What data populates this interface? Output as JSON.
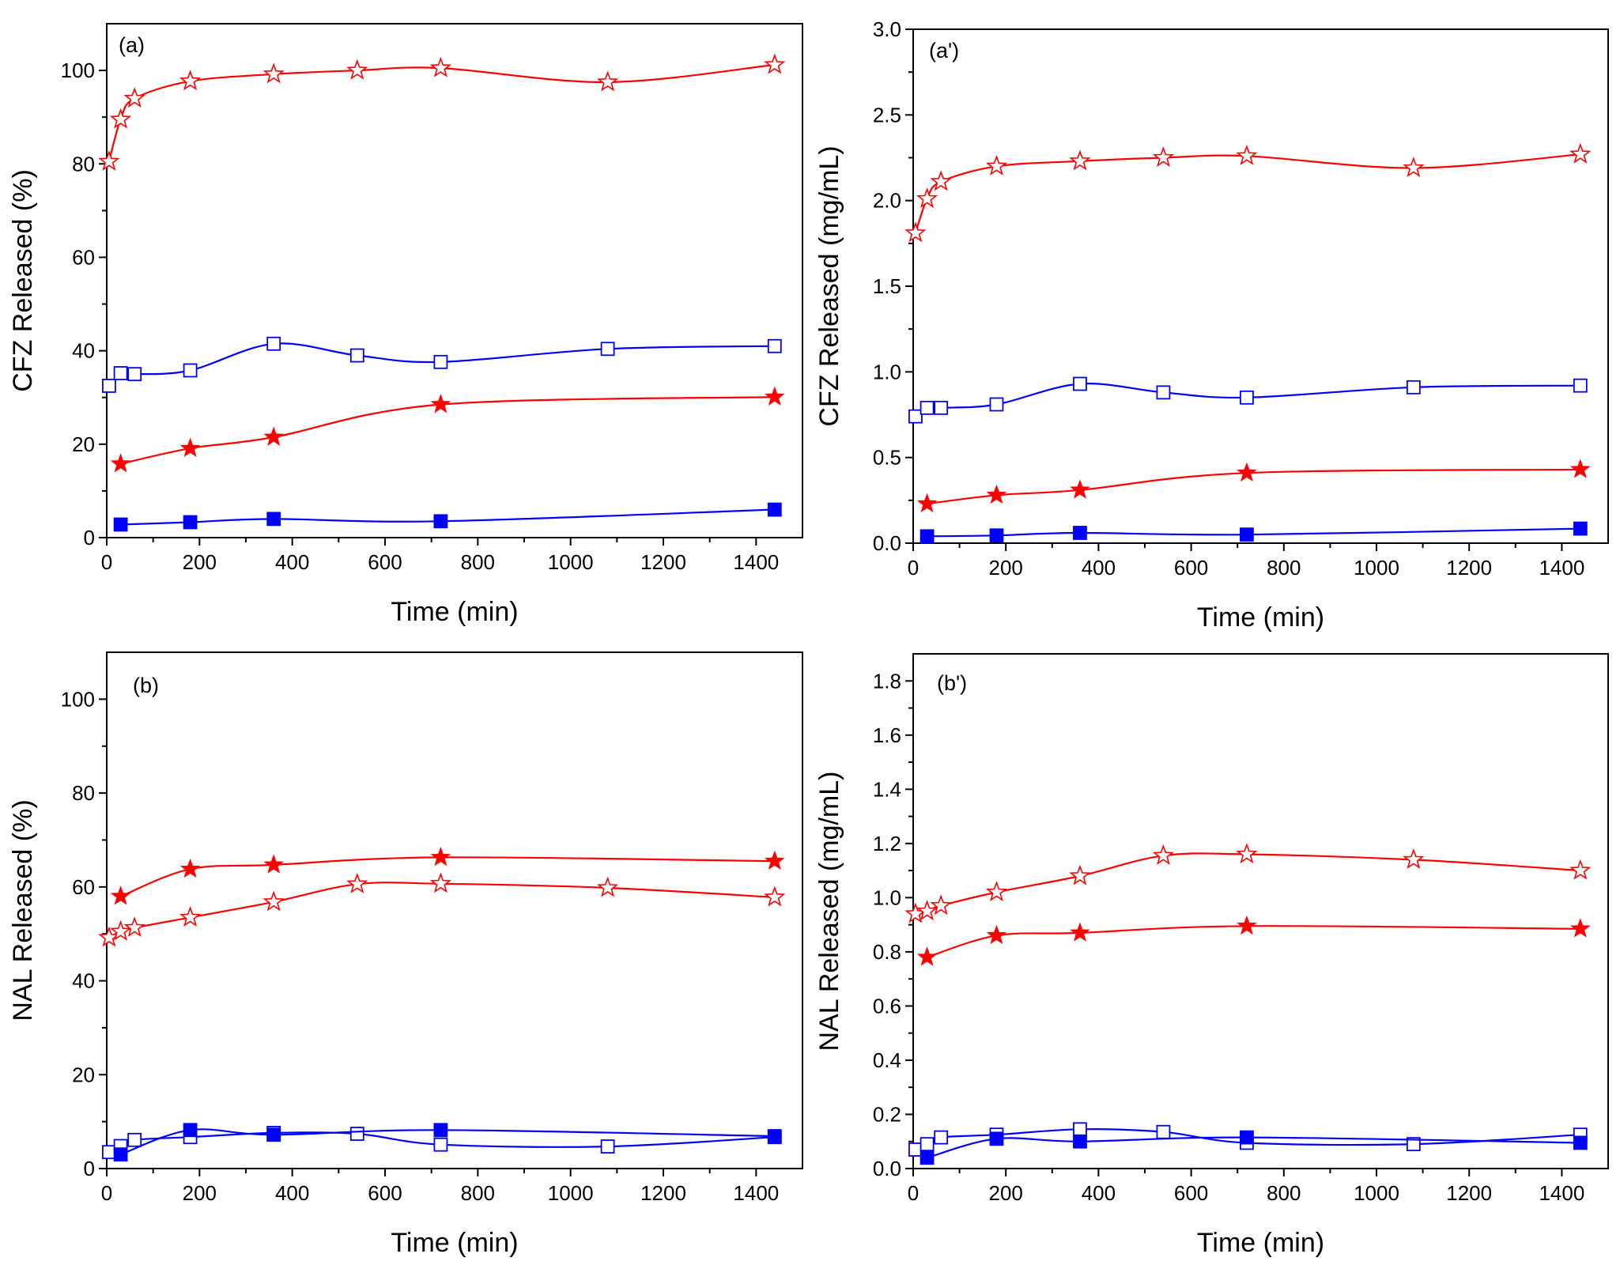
{
  "colors": {
    "red": "#ff0000",
    "blue": "#0000ff",
    "axis": "#000000"
  },
  "chart_data": [
    {
      "type": "line",
      "panel_label": "(a)",
      "xlabel": "Time (min)",
      "ylabel": "CFZ Released (%)",
      "xlim": [
        0,
        1500
      ],
      "ylim": [
        0,
        110
      ],
      "xticks": [
        0,
        200,
        400,
        600,
        800,
        1000,
        1200,
        1400
      ],
      "yticks": [
        0,
        20,
        40,
        60,
        80,
        100
      ],
      "series": [
        {
          "name": "red open stars",
          "color": "red",
          "marker": "star-open",
          "x": [
            5,
            30,
            60,
            180,
            360,
            540,
            720,
            1080,
            1440
          ],
          "y": [
            80.5,
            89.5,
            94,
            97.7,
            99.2,
            100,
            100.5,
            97.5,
            101.2
          ]
        },
        {
          "name": "blue open squares",
          "color": "blue",
          "marker": "square-open",
          "x": [
            5,
            30,
            60,
            180,
            360,
            540,
            720,
            1080,
            1440
          ],
          "y": [
            32.5,
            35.2,
            35,
            35.8,
            41.5,
            39,
            37.6,
            40.4,
            41
          ]
        },
        {
          "name": "red filled stars",
          "color": "red",
          "marker": "star-filled",
          "x": [
            30,
            180,
            360,
            720,
            1440
          ],
          "y": [
            15.8,
            19.1,
            21.5,
            28.5,
            30.1
          ]
        },
        {
          "name": "blue filled squares",
          "color": "blue",
          "marker": "square-filled",
          "x": [
            30,
            180,
            360,
            720,
            1440
          ],
          "y": [
            2.8,
            3.3,
            4.0,
            3.5,
            6.0
          ]
        }
      ]
    },
    {
      "type": "line",
      "panel_label": "(a')",
      "xlabel": "Time (min)",
      "ylabel": "CFZ Released (mg/mL)",
      "xlim": [
        0,
        1500
      ],
      "ylim": [
        0,
        3.0
      ],
      "xticks": [
        0,
        200,
        400,
        600,
        800,
        1000,
        1200,
        1400
      ],
      "yticks": [
        "0.0",
        "0.5",
        "1.0",
        "1.5",
        "2.0",
        "2.5",
        "3.0"
      ],
      "series": [
        {
          "name": "red open stars",
          "color": "red",
          "marker": "star-open",
          "x": [
            5,
            30,
            60,
            180,
            360,
            540,
            720,
            1080,
            1440
          ],
          "y": [
            1.81,
            2.01,
            2.11,
            2.2,
            2.23,
            2.25,
            2.26,
            2.19,
            2.27
          ]
        },
        {
          "name": "blue open squares",
          "color": "blue",
          "marker": "square-open",
          "x": [
            5,
            30,
            60,
            180,
            360,
            540,
            720,
            1080,
            1440
          ],
          "y": [
            0.74,
            0.79,
            0.79,
            0.81,
            0.93,
            0.88,
            0.85,
            0.91,
            0.92
          ]
        },
        {
          "name": "red filled stars",
          "color": "red",
          "marker": "star-filled",
          "x": [
            30,
            180,
            360,
            720,
            1440
          ],
          "y": [
            0.23,
            0.28,
            0.31,
            0.41,
            0.43
          ]
        },
        {
          "name": "blue filled squares",
          "color": "blue",
          "marker": "square-filled",
          "x": [
            30,
            180,
            360,
            720,
            1440
          ],
          "y": [
            0.04,
            0.045,
            0.06,
            0.05,
            0.085
          ]
        }
      ]
    },
    {
      "type": "line",
      "panel_label": "(b)",
      "xlabel": "Time (min)",
      "ylabel": "NAL Released (%)",
      "xlim": [
        0,
        1500
      ],
      "ylim": [
        0,
        110
      ],
      "xticks": [
        0,
        200,
        400,
        600,
        800,
        1000,
        1200,
        1400
      ],
      "yticks": [
        0,
        20,
        40,
        60,
        80,
        100
      ],
      "series": [
        {
          "name": "red filled stars",
          "color": "red",
          "marker": "star-filled",
          "x": [
            30,
            180,
            360,
            720,
            1440
          ],
          "y": [
            58,
            63.8,
            64.7,
            66.3,
            65.5
          ]
        },
        {
          "name": "red open stars",
          "color": "red",
          "marker": "star-open",
          "x": [
            5,
            30,
            60,
            180,
            360,
            540,
            720,
            1080,
            1440
          ],
          "y": [
            49.2,
            50.5,
            51.3,
            53.5,
            56.8,
            60.6,
            60.7,
            59.8,
            57.8
          ]
        },
        {
          "name": "blue open squares",
          "color": "blue",
          "marker": "square-open",
          "x": [
            5,
            30,
            60,
            180,
            360,
            540,
            720,
            1080,
            1440
          ],
          "y": [
            3.5,
            4.8,
            6.1,
            6.7,
            7.6,
            7.4,
            5.1,
            4.7,
            6.7
          ]
        },
        {
          "name": "blue filled squares",
          "color": "blue",
          "marker": "square-filled",
          "x": [
            30,
            180,
            360,
            720,
            1440
          ],
          "y": [
            3.0,
            8.2,
            7.2,
            8.2,
            6.9
          ]
        }
      ]
    },
    {
      "type": "line",
      "panel_label": "(b')",
      "xlabel": "Time (min)",
      "ylabel": "NAL Released (mg/mL)",
      "xlim": [
        0,
        1500
      ],
      "ylim": [
        0,
        1.9
      ],
      "xticks": [
        0,
        200,
        400,
        600,
        800,
        1000,
        1200,
        1400
      ],
      "yticks": [
        "0.0",
        "0.2",
        "0.4",
        "0.6",
        "0.8",
        "1.0",
        "1.2",
        "1.4",
        "1.6",
        "1.8"
      ],
      "series": [
        {
          "name": "red open stars",
          "color": "red",
          "marker": "star-open",
          "x": [
            5,
            30,
            60,
            180,
            360,
            540,
            720,
            1080,
            1440
          ],
          "y": [
            0.94,
            0.95,
            0.97,
            1.02,
            1.08,
            1.155,
            1.16,
            1.14,
            1.1
          ]
        },
        {
          "name": "red filled stars",
          "color": "red",
          "marker": "star-filled",
          "x": [
            30,
            180,
            360,
            720,
            1440
          ],
          "y": [
            0.78,
            0.86,
            0.87,
            0.895,
            0.885
          ]
        },
        {
          "name": "blue open squares",
          "color": "blue",
          "marker": "square-open",
          "x": [
            5,
            30,
            60,
            180,
            360,
            540,
            720,
            1080,
            1440
          ],
          "y": [
            0.07,
            0.09,
            0.115,
            0.125,
            0.145,
            0.135,
            0.095,
            0.09,
            0.125
          ]
        },
        {
          "name": "blue filled squares",
          "color": "blue",
          "marker": "square-filled",
          "x": [
            30,
            180,
            360,
            720,
            1440
          ],
          "y": [
            0.04,
            0.11,
            0.1,
            0.115,
            0.095
          ]
        }
      ]
    }
  ]
}
